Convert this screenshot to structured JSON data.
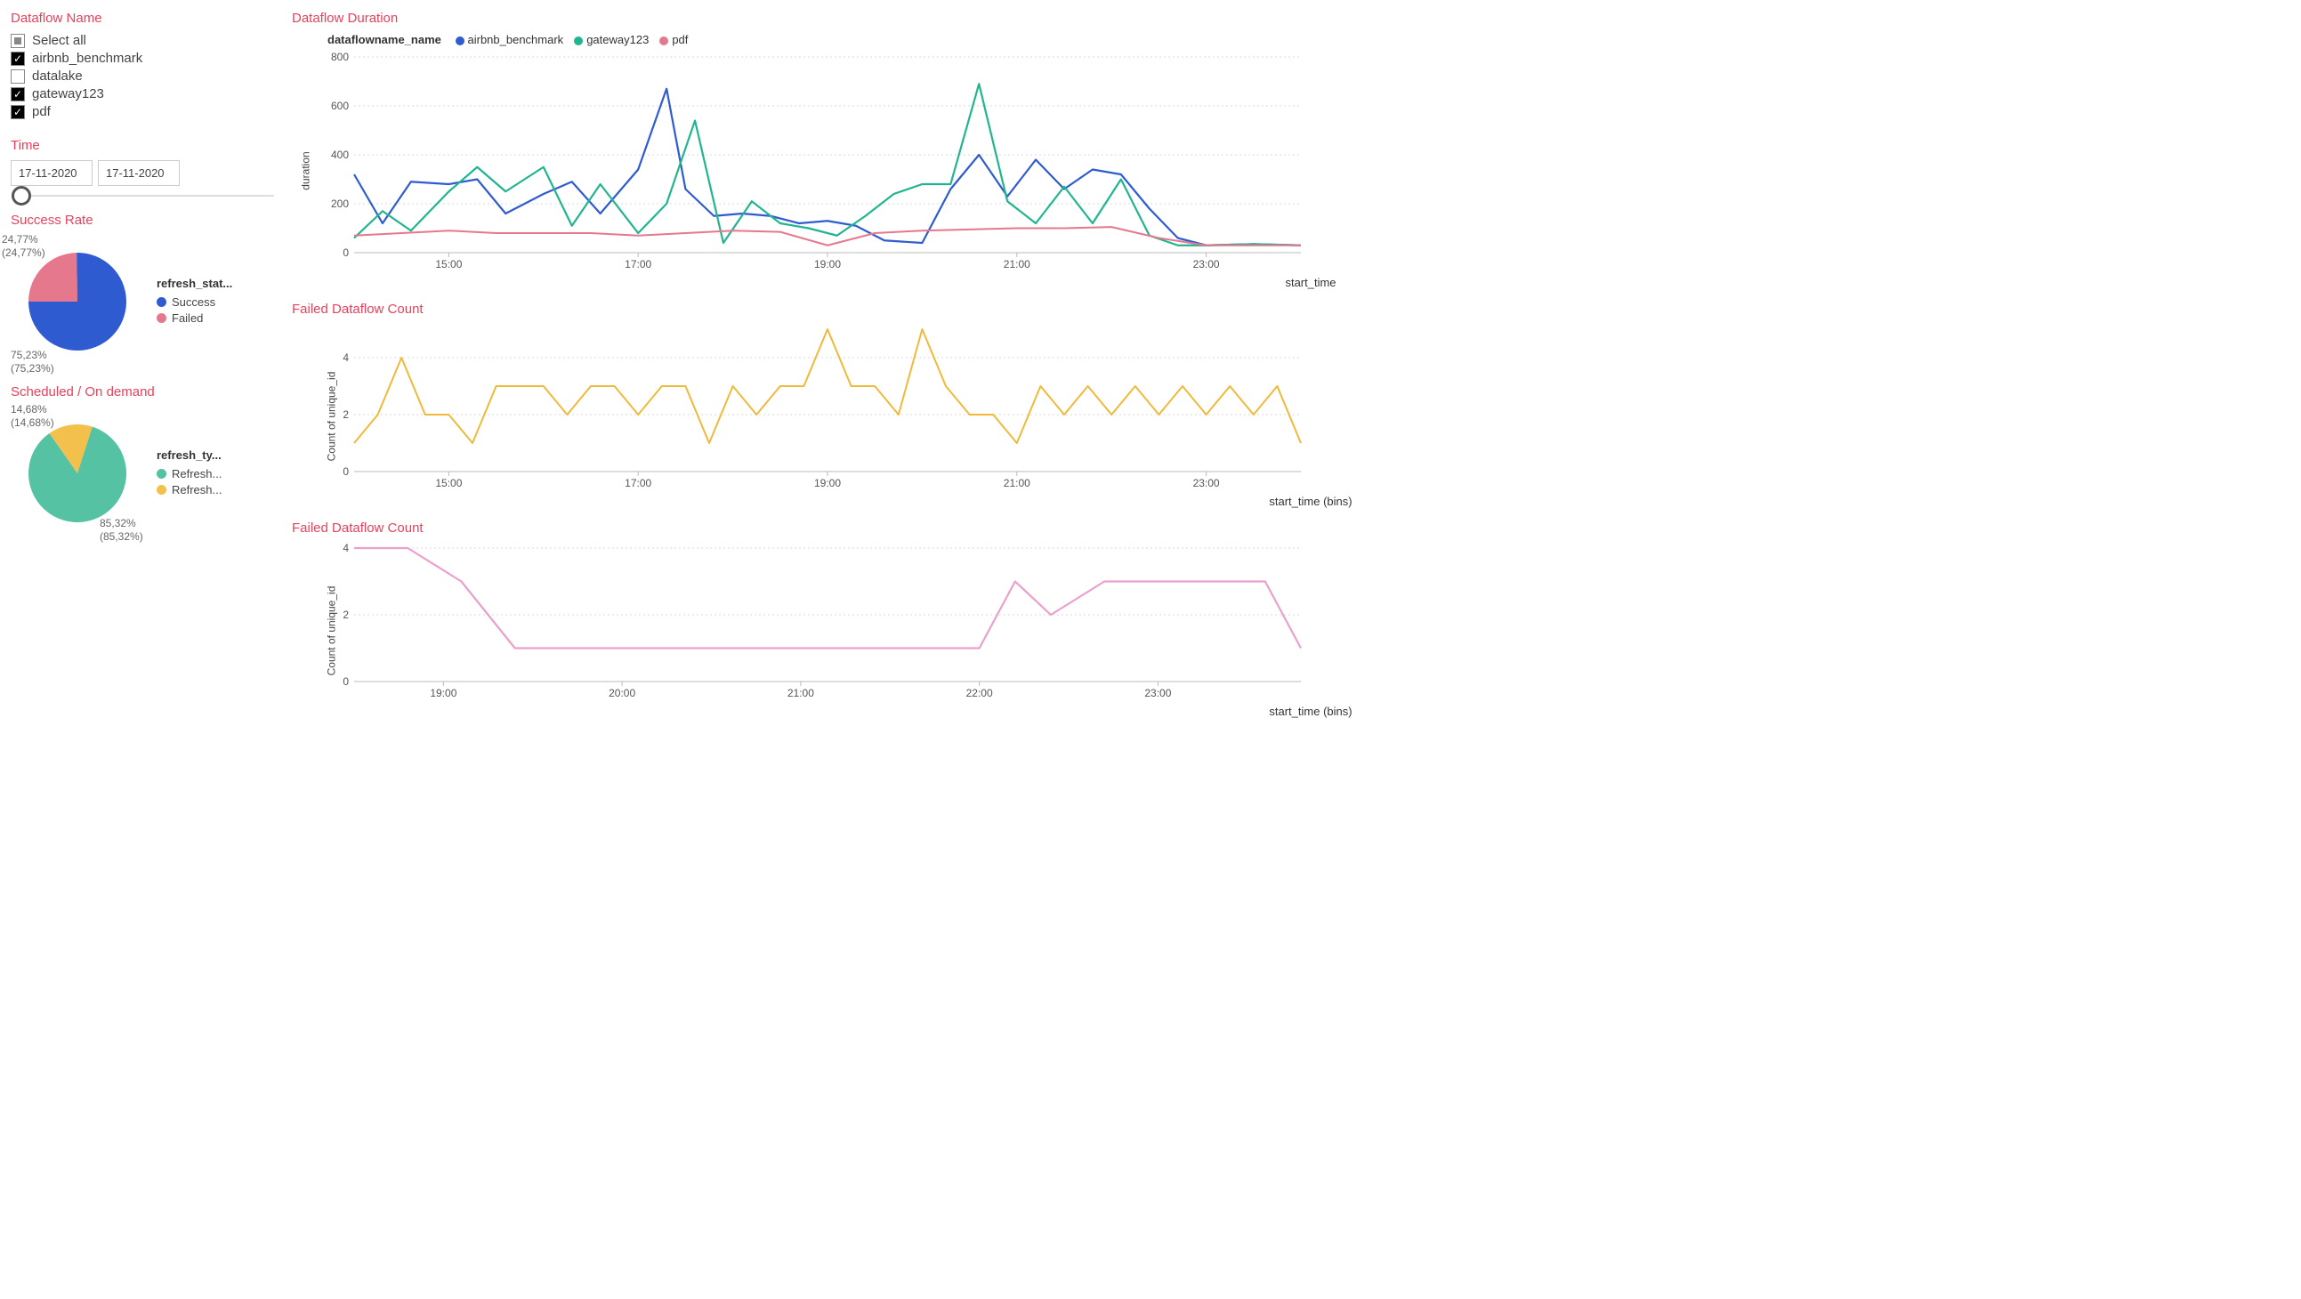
{
  "colors": {
    "title": "#e8415b",
    "grid": "#e6e6e6",
    "grid_dotted": "#d8d8d8",
    "axis": "#bbbbbb",
    "text": "#444444"
  },
  "filters": {
    "title": "Dataflow Name",
    "select_all_label": "Select all",
    "items": [
      {
        "label": "airbnb_benchmark",
        "checked": true
      },
      {
        "label": "datalake",
        "checked": false
      },
      {
        "label": "gateway123",
        "checked": true
      },
      {
        "label": "pdf",
        "checked": true
      }
    ]
  },
  "time": {
    "title": "Time",
    "from": "17-11-2020",
    "to": "17-11-2020"
  },
  "success_rate": {
    "title": "Success Rate",
    "legend_title": "refresh_stat...",
    "slices": [
      {
        "label": "Success",
        "value": 75.23,
        "display": "75,23%",
        "display_paren": "(75,23%)",
        "color": "#2f5bd0"
      },
      {
        "label": "Failed",
        "value": 24.77,
        "display": "24,77%",
        "display_paren": "(24,77%)",
        "color": "#e5788c"
      }
    ]
  },
  "scheduled": {
    "title": "Scheduled / On demand",
    "legend_title": "refresh_ty...",
    "slices": [
      {
        "label": "Refresh...",
        "value": 85.32,
        "display": "85,32%",
        "display_paren": "(85,32%)",
        "color": "#55c2a3"
      },
      {
        "label": "Refresh...",
        "value": 14.68,
        "display": "14,68%",
        "display_paren": "(14,68%)",
        "color": "#f3c14b"
      }
    ]
  },
  "duration_chart": {
    "title": "Dataflow Duration",
    "legend_label": "dataflowname_name",
    "x_label": "start_time",
    "y_label": "duration",
    "y_ticks": [
      0,
      200,
      400,
      600,
      800
    ],
    "ylim": [
      0,
      800
    ],
    "x_ticks": [
      "15:00",
      "17:00",
      "19:00",
      "21:00",
      "23:00"
    ],
    "x_range_hours": [
      14,
      24
    ],
    "series": [
      {
        "name": "airbnb_benchmark",
        "color": "#2f5bd0",
        "width": 2.2,
        "x": [
          14.0,
          14.3,
          14.6,
          15.0,
          15.3,
          15.6,
          16.0,
          16.3,
          16.6,
          17.0,
          17.3,
          17.5,
          17.8,
          18.1,
          18.4,
          18.7,
          19.0,
          19.3,
          19.6,
          20.0,
          20.3,
          20.6,
          20.9,
          21.2,
          21.5,
          21.8,
          22.1,
          22.4,
          22.7,
          23.0,
          23.5,
          24.0
        ],
        "y": [
          320,
          120,
          290,
          280,
          300,
          160,
          240,
          290,
          160,
          340,
          670,
          260,
          150,
          160,
          150,
          120,
          130,
          110,
          50,
          40,
          260,
          400,
          230,
          380,
          260,
          340,
          320,
          180,
          60,
          30,
          35,
          30
        ]
      },
      {
        "name": "gateway123",
        "color": "#21b58f",
        "width": 2.2,
        "x": [
          14.0,
          14.3,
          14.6,
          15.0,
          15.3,
          15.6,
          16.0,
          16.3,
          16.6,
          17.0,
          17.3,
          17.6,
          17.9,
          18.2,
          18.5,
          18.8,
          19.1,
          19.4,
          19.7,
          20.0,
          20.3,
          20.6,
          20.9,
          21.2,
          21.5,
          21.8,
          22.1,
          22.4,
          22.7,
          23.0,
          23.5,
          24.0
        ],
        "y": [
          60,
          170,
          90,
          250,
          350,
          250,
          350,
          110,
          280,
          80,
          200,
          540,
          40,
          210,
          120,
          100,
          70,
          150,
          240,
          280,
          280,
          690,
          210,
          120,
          270,
          120,
          300,
          70,
          30,
          30,
          35,
          30
        ]
      },
      {
        "name": "pdf",
        "color": "#e5788c",
        "width": 2.0,
        "x": [
          14.0,
          14.5,
          15.0,
          15.5,
          16.0,
          16.5,
          17.0,
          17.5,
          18.0,
          18.5,
          19.0,
          19.5,
          20.0,
          20.5,
          21.0,
          21.5,
          22.0,
          22.5,
          23.0,
          23.5,
          24.0
        ],
        "y": [
          70,
          80,
          90,
          80,
          80,
          80,
          70,
          80,
          90,
          85,
          30,
          80,
          90,
          95,
          100,
          100,
          105,
          60,
          30,
          30,
          30
        ]
      }
    ]
  },
  "failed_count_1": {
    "title": "Failed Dataflow Count",
    "x_label": "start_time (bins)",
    "y_label": "Count of unique_id",
    "y_ticks": [
      0,
      2,
      4
    ],
    "ylim": [
      0,
      5
    ],
    "x_ticks": [
      "15:00",
      "17:00",
      "19:00",
      "21:00",
      "23:00"
    ],
    "x_range_hours": [
      14,
      24
    ],
    "color": "#f0b93a",
    "width": 2,
    "x": [
      14.0,
      14.25,
      14.5,
      14.75,
      15.0,
      15.25,
      15.5,
      15.75,
      16.0,
      16.25,
      16.5,
      16.75,
      17.0,
      17.25,
      17.5,
      17.75,
      18.0,
      18.25,
      18.5,
      18.75,
      19.0,
      19.25,
      19.5,
      19.75,
      20.0,
      20.25,
      20.5,
      20.75,
      21.0,
      21.25,
      21.5,
      21.75,
      22.0,
      22.25,
      22.5,
      22.75,
      23.0,
      23.25,
      23.5,
      23.75,
      24.0
    ],
    "y": [
      1,
      2,
      4,
      2,
      2,
      1,
      3,
      3,
      3,
      2,
      3,
      3,
      2,
      3,
      3,
      1,
      3,
      2,
      3,
      3,
      5,
      3,
      3,
      2,
      5,
      3,
      2,
      2,
      1,
      3,
      2,
      3,
      2,
      3,
      2,
      3,
      2,
      3,
      2,
      3,
      1
    ]
  },
  "failed_count_2": {
    "title": "Failed Dataflow Count",
    "x_label": "start_time (bins)",
    "y_label": "Count of unique_id",
    "y_ticks": [
      0,
      2,
      4
    ],
    "ylim": [
      0,
      4
    ],
    "x_ticks": [
      "19:00",
      "20:00",
      "21:00",
      "22:00",
      "23:00"
    ],
    "x_range_hours": [
      18.5,
      23.8
    ],
    "color": "#eaa0cc",
    "width": 2.2,
    "x": [
      18.5,
      18.8,
      19.1,
      19.4,
      19.8,
      20.2,
      20.6,
      21.0,
      21.4,
      21.8,
      22.0,
      22.2,
      22.4,
      22.7,
      23.0,
      23.3,
      23.6,
      23.8
    ],
    "y": [
      4,
      4,
      3,
      1,
      1,
      1,
      1,
      1,
      1,
      1,
      1,
      3,
      2,
      3,
      3,
      3,
      3,
      1
    ]
  }
}
